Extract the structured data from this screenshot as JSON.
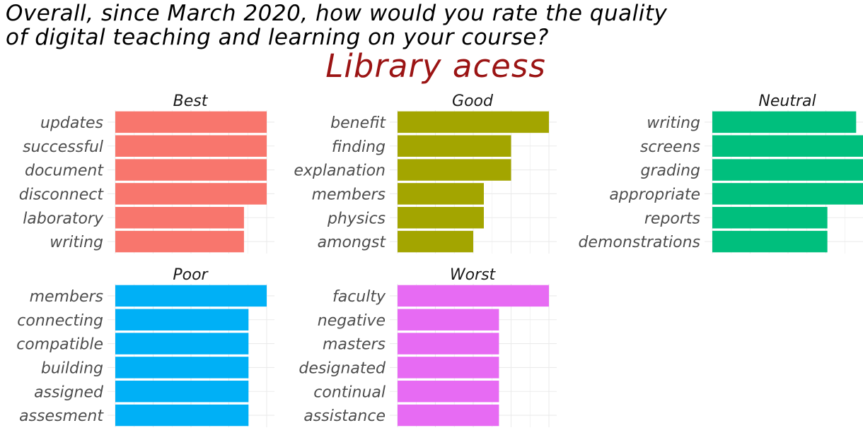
{
  "title_line1": "Overall, since March 2020, how would you rate the quality",
  "title_line2": "of digital teaching and learning on your course?",
  "subtitle": "Library acess",
  "colors": {
    "title": "#000000",
    "subtitle": "#9b1414",
    "grid": "#ebebeb"
  },
  "chart_data": [
    {
      "type": "bar",
      "orientation": "horizontal",
      "facet": "Best",
      "color": "#f8766d",
      "categories": [
        "updates",
        "successful",
        "document",
        "disconnect",
        "laboratory",
        "writing"
      ],
      "values": [
        1.0,
        1.0,
        1.0,
        1.0,
        0.85,
        0.85
      ],
      "xlim": [
        0,
        1.05
      ],
      "grid": true
    },
    {
      "type": "bar",
      "orientation": "horizontal",
      "facet": "Good",
      "color": "#a3a500",
      "categories": [
        "benefit",
        "finding",
        "explanation",
        "members",
        "physics",
        "amongst"
      ],
      "values": [
        1.0,
        0.75,
        0.75,
        0.57,
        0.57,
        0.5
      ],
      "xlim": [
        0,
        1.05
      ],
      "grid": true
    },
    {
      "type": "bar",
      "orientation": "horizontal",
      "facet": "Neutral",
      "color": "#00bf7d",
      "categories": [
        "writing",
        "screens",
        "grading",
        "appropriate",
        "reports",
        "demonstrations"
      ],
      "values": [
        0.95,
        1.0,
        1.0,
        1.0,
        0.76,
        0.76
      ],
      "xlim": [
        0,
        1.05
      ],
      "grid": true
    },
    {
      "type": "bar",
      "orientation": "horizontal",
      "facet": "Poor",
      "color": "#00b0f6",
      "categories": [
        "members",
        "connecting",
        "compatible",
        "building",
        "assigned",
        "assesment"
      ],
      "values": [
        1.0,
        0.88,
        0.88,
        0.88,
        0.88,
        0.88
      ],
      "xlim": [
        0,
        1.05
      ],
      "grid": true
    },
    {
      "type": "bar",
      "orientation": "horizontal",
      "facet": "Worst",
      "color": "#e76bf3",
      "categories": [
        "faculty",
        "negative",
        "masters",
        "designated",
        "continual",
        "assistance"
      ],
      "values": [
        1.0,
        0.67,
        0.67,
        0.67,
        0.67,
        0.67
      ],
      "xlim": [
        0,
        1.05
      ],
      "grid": true
    }
  ]
}
